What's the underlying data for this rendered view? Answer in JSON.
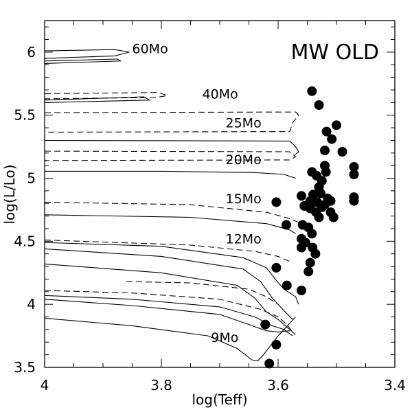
{
  "chart_data": {
    "type": "scatter",
    "title": "MW OLD",
    "xlabel": "log(Teff)",
    "ylabel": "log(L/Lo)",
    "xlim": [
      4.0,
      3.4
    ],
    "ylim": [
      3.5,
      6.25
    ],
    "x_ticks": [
      "4",
      "3.8",
      "3.6",
      "3.4"
    ],
    "y_ticks": [
      "3.5",
      "4",
      "4.5",
      "5",
      "5.5",
      "6"
    ],
    "tracks": [
      {
        "label": "60Mo",
        "label_at": [
          3.85,
          6.03
        ],
        "style": "solid",
        "points": [
          [
            4.0,
            6.01
          ],
          [
            3.88,
            6.02
          ],
          [
            3.855,
            6.0
          ],
          [
            3.88,
            5.97
          ],
          [
            4.0,
            5.95
          ]
        ]
      },
      {
        "label": "",
        "label_at": null,
        "style": "solid",
        "points": [
          [
            4.0,
            5.93
          ],
          [
            3.875,
            5.945
          ],
          [
            3.87,
            5.93
          ],
          [
            4.0,
            5.91
          ]
        ]
      },
      {
        "label": "40Mo",
        "label_at": [
          3.73,
          5.67
        ],
        "style": "dashed",
        "points": [
          [
            4.0,
            5.67
          ],
          [
            3.805,
            5.68
          ],
          [
            3.79,
            5.655
          ],
          [
            3.81,
            5.64
          ],
          [
            4.0,
            5.63
          ]
        ]
      },
      {
        "label": "",
        "label_at": null,
        "style": "solid",
        "points": [
          [
            4.0,
            5.62
          ],
          [
            3.83,
            5.645
          ],
          [
            3.82,
            5.62
          ],
          [
            4.0,
            5.6
          ]
        ]
      },
      {
        "label": "25Mo",
        "label_at": [
          3.69,
          5.44
        ],
        "style": "dashed",
        "points": [
          [
            4.0,
            5.52
          ],
          [
            3.57,
            5.525
          ],
          [
            3.565,
            5.5
          ],
          [
            3.575,
            5.44
          ],
          [
            3.58,
            5.37
          ],
          [
            4.0,
            5.365
          ]
        ]
      },
      {
        "label": "",
        "label_at": null,
        "style": "solid",
        "points": [
          [
            4.0,
            5.3
          ],
          [
            3.58,
            5.295
          ],
          [
            3.57,
            5.25
          ],
          [
            3.565,
            5.21
          ],
          [
            3.573,
            5.18
          ]
        ]
      },
      {
        "label": "20Mo",
        "label_at": [
          3.69,
          5.15
        ],
        "style": "dashed",
        "points": [
          [
            4.0,
            5.215
          ],
          [
            3.58,
            5.21
          ],
          [
            3.57,
            5.17
          ],
          [
            3.58,
            5.145
          ],
          [
            4.0,
            5.14
          ]
        ]
      },
      {
        "label": "",
        "label_at": null,
        "style": "solid",
        "points": [
          [
            4.0,
            5.055
          ],
          [
            3.8,
            5.055
          ],
          [
            3.64,
            5.045
          ],
          [
            3.59,
            5.03
          ],
          [
            3.57,
            5.0
          ]
        ]
      },
      {
        "label": "15Mo",
        "label_at": [
          3.69,
          4.84
        ],
        "style": "dashed",
        "points": [
          [
            4.0,
            4.81
          ],
          [
            3.75,
            4.79
          ],
          [
            3.62,
            4.73
          ],
          [
            3.58,
            4.68
          ],
          [
            3.565,
            4.65
          ]
        ]
      },
      {
        "label": "",
        "label_at": null,
        "style": "solid",
        "points": [
          [
            4.0,
            4.71
          ],
          [
            3.75,
            4.69
          ],
          [
            3.62,
            4.64
          ],
          [
            3.58,
            4.59
          ],
          [
            3.57,
            4.56
          ]
        ]
      },
      {
        "label": "12Mo",
        "label_at": [
          3.69,
          4.52
        ],
        "style": "dashed",
        "points": [
          [
            4.0,
            4.51
          ],
          [
            3.75,
            4.47
          ],
          [
            3.64,
            4.42
          ],
          [
            3.6,
            4.38
          ],
          [
            3.575,
            4.33
          ]
        ]
      },
      {
        "label": "",
        "label_at": null,
        "style": "solid",
        "points": [
          [
            4.0,
            4.49
          ],
          [
            3.8,
            4.46
          ],
          [
            3.66,
            4.37
          ],
          [
            3.62,
            4.29
          ],
          [
            3.605,
            4.2
          ],
          [
            3.59,
            4.12
          ],
          [
            3.57,
            4.06
          ],
          [
            3.565,
            4.0
          ]
        ]
      },
      {
        "label": "",
        "label_at": null,
        "style": "solid",
        "points": [
          [
            4.0,
            4.44
          ],
          [
            3.8,
            4.38
          ],
          [
            3.66,
            4.28
          ],
          [
            3.63,
            4.18
          ],
          [
            3.61,
            4.05
          ],
          [
            3.59,
            3.95
          ],
          [
            3.575,
            3.88
          ]
        ]
      },
      {
        "label": "",
        "label_at": null,
        "style": "solid",
        "points": [
          [
            4.0,
            4.32
          ],
          [
            3.8,
            4.25
          ],
          [
            3.67,
            4.15
          ],
          [
            3.64,
            4.05
          ],
          [
            3.62,
            3.94
          ],
          [
            3.6,
            3.88
          ],
          [
            3.58,
            3.8
          ],
          [
            3.57,
            3.76
          ]
        ]
      },
      {
        "label": "",
        "label_at": null,
        "style": "dashed",
        "points": [
          [
            3.86,
            4.18
          ],
          [
            3.75,
            4.17
          ],
          [
            3.65,
            4.12
          ],
          [
            3.62,
            4.06
          ],
          [
            3.6,
            4.0
          ]
        ]
      },
      {
        "label": "",
        "label_at": null,
        "style": "dashed",
        "points": [
          [
            4.0,
            4.11
          ],
          [
            3.85,
            4.09
          ],
          [
            3.7,
            4.04
          ],
          [
            3.63,
            3.96
          ],
          [
            3.6,
            3.9
          ],
          [
            3.585,
            3.84
          ],
          [
            3.575,
            3.78
          ]
        ]
      },
      {
        "label": "",
        "label_at": null,
        "style": "solid",
        "points": [
          [
            4.0,
            4.07
          ],
          [
            3.85,
            4.04
          ],
          [
            3.7,
            3.98
          ],
          [
            3.64,
            3.9
          ],
          [
            3.61,
            3.83
          ],
          [
            3.59,
            3.8
          ],
          [
            3.575,
            3.75
          ]
        ]
      },
      {
        "label": "",
        "label_at": null,
        "style": "solid",
        "points": [
          [
            4.0,
            4.04
          ],
          [
            3.85,
            3.99
          ],
          [
            3.7,
            3.92
          ],
          [
            3.65,
            3.84
          ],
          [
            3.62,
            3.79
          ],
          [
            3.6,
            3.78
          ],
          [
            3.58,
            3.79
          ]
        ]
      },
      {
        "label": "9Mo",
        "label_at": [
          3.715,
          3.74
        ],
        "style": "solid",
        "points": [
          [
            4.0,
            3.89
          ],
          [
            3.85,
            3.83
          ],
          [
            3.72,
            3.75
          ],
          [
            3.67,
            3.65
          ],
          [
            3.645,
            3.56
          ],
          [
            3.635,
            3.55
          ],
          [
            3.625,
            3.6
          ],
          [
            3.615,
            3.66
          ],
          [
            3.6,
            3.75
          ],
          [
            3.58,
            3.85
          ],
          [
            3.57,
            3.9
          ]
        ]
      }
    ],
    "points": [
      [
        3.542,
        5.69
      ],
      [
        3.53,
        5.58
      ],
      [
        3.517,
        5.37
      ],
      [
        3.508,
        5.31
      ],
      [
        3.5,
        5.42
      ],
      [
        3.49,
        5.21
      ],
      [
        3.52,
        5.22
      ],
      [
        3.52,
        5.1
      ],
      [
        3.518,
        5.05
      ],
      [
        3.525,
        4.98
      ],
      [
        3.534,
        5.02
      ],
      [
        3.542,
        5.05
      ],
      [
        3.53,
        4.93
      ],
      [
        3.527,
        4.88
      ],
      [
        3.54,
        4.87
      ],
      [
        3.545,
        4.82
      ],
      [
        3.533,
        4.81
      ],
      [
        3.525,
        4.77
      ],
      [
        3.52,
        4.79
      ],
      [
        3.515,
        4.84
      ],
      [
        3.51,
        4.82
      ],
      [
        3.535,
        4.73
      ],
      [
        3.545,
        4.76
      ],
      [
        3.555,
        4.78
      ],
      [
        3.56,
        4.86
      ],
      [
        3.558,
        4.63
      ],
      [
        3.548,
        4.61
      ],
      [
        3.542,
        4.56
      ],
      [
        3.56,
        4.52
      ],
      [
        3.553,
        4.49
      ],
      [
        3.56,
        4.45
      ],
      [
        3.541,
        4.45
      ],
      [
        3.536,
        4.4
      ],
      [
        3.545,
        4.33
      ],
      [
        3.548,
        4.26
      ],
      [
        3.56,
        4.11
      ],
      [
        3.585,
        4.15
      ],
      [
        3.586,
        4.63
      ],
      [
        3.603,
        4.81
      ],
      [
        3.603,
        4.29
      ],
      [
        3.622,
        3.84
      ],
      [
        3.603,
        3.68
      ],
      [
        3.615,
        3.53
      ],
      [
        3.47,
        5.09
      ],
      [
        3.47,
        5.03
      ],
      [
        3.47,
        4.85
      ],
      [
        3.47,
        4.82
      ],
      [
        3.505,
        4.69
      ],
      [
        3.51,
        4.73
      ],
      [
        3.53,
        4.69
      ]
    ]
  }
}
